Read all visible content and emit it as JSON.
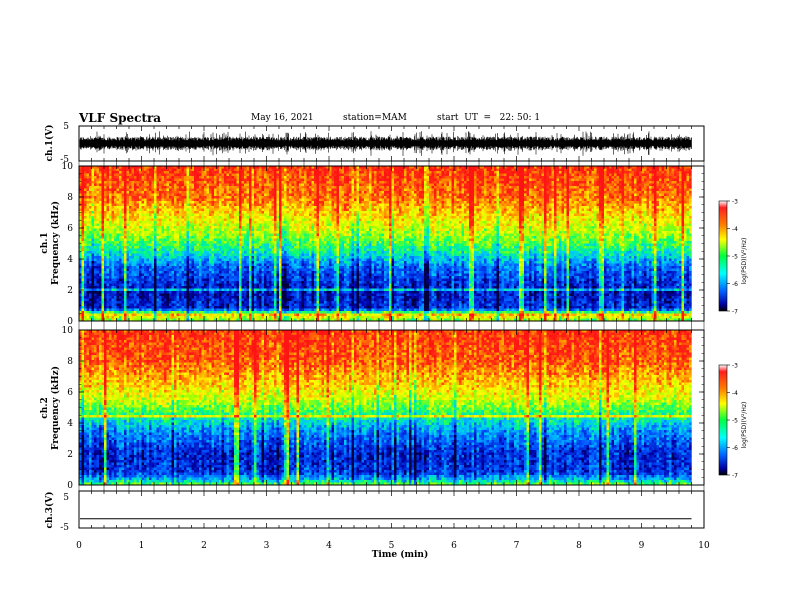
{
  "header": {
    "title": "VLF Spectra",
    "date": "May 16, 2021",
    "station": "station=MAM",
    "start": "start  UT  =   22: 50: 1"
  },
  "chart_data": [
    {
      "type": "line",
      "panel": "ch1-waveform",
      "ylabel": "ch.1(V)",
      "ylim": [
        -5,
        5
      ],
      "yticks": [
        5,
        -5
      ],
      "xlim": [
        0,
        10
      ],
      "description_of_signal": "dense broadband noise spanning about -4 to 4 V, data ends near 9.8 min"
    },
    {
      "type": "heatmap",
      "panel": "ch1-spectrogram",
      "ylabel_top": "ch.1",
      "ylabel": "Frequency (kHz)",
      "ylim": [
        0,
        10
      ],
      "yticks": [
        0,
        2,
        4,
        6,
        8,
        10
      ],
      "xlim": [
        0,
        10
      ],
      "data_end_min": 9.8,
      "colorbar": {
        "label": "log(PSD)(V²/Hz)",
        "range": [
          -7,
          -3
        ],
        "ticks": [
          "-3",
          "-4",
          "-5",
          "-6",
          "-7"
        ]
      },
      "level_profile": [
        {
          "f": 0.0,
          "logpsd": -4.8
        },
        {
          "f": 0.4,
          "logpsd": -4.0
        },
        {
          "f": 0.8,
          "logpsd": -6.4
        },
        {
          "f": 2.0,
          "logpsd": -6.5
        },
        {
          "f": 3.5,
          "logpsd": -6.0
        },
        {
          "f": 4.5,
          "logpsd": -5.2
        },
        {
          "f": 5.5,
          "logpsd": -4.6
        },
        {
          "f": 6.5,
          "logpsd": -4.2
        },
        {
          "f": 8.0,
          "logpsd": -3.6
        },
        {
          "f": 10.0,
          "logpsd": -3.3
        }
      ]
    },
    {
      "type": "heatmap",
      "panel": "ch2-spectrogram",
      "ylabel_top": "ch.2",
      "ylabel": "Frequency (kHz)",
      "ylim": [
        0,
        10
      ],
      "yticks": [
        0,
        2,
        4,
        6,
        8,
        10
      ],
      "xlim": [
        0,
        10
      ],
      "data_end_min": 9.8,
      "colorbar": {
        "label": "log(PSD)(V²/Hz)",
        "range": [
          -7,
          -3
        ],
        "ticks": [
          "-3",
          "-4",
          "-5",
          "-6",
          "-7"
        ]
      },
      "level_profile": [
        {
          "f": 0.0,
          "logpsd": -4.6
        },
        {
          "f": 0.3,
          "logpsd": -5.5
        },
        {
          "f": 0.8,
          "logpsd": -6.3
        },
        {
          "f": 2.0,
          "logpsd": -6.4
        },
        {
          "f": 3.5,
          "logpsd": -5.8
        },
        {
          "f": 4.5,
          "logpsd": -5.1
        },
        {
          "f": 5.5,
          "logpsd": -4.4
        },
        {
          "f": 6.5,
          "logpsd": -4.0
        },
        {
          "f": 8.0,
          "logpsd": -3.5
        },
        {
          "f": 10.0,
          "logpsd": -3.3
        }
      ]
    },
    {
      "type": "line",
      "panel": "ch3-waveform",
      "ylabel": "ch.3(V)",
      "ylim": [
        -5,
        5
      ],
      "yticks": [
        5,
        -5
      ],
      "xlim": [
        0,
        10
      ],
      "xlabel": "Time (min)",
      "xticks": [
        0,
        1,
        2,
        3,
        4,
        5,
        6,
        7,
        8,
        9,
        10
      ],
      "series": [
        {
          "x": [
            0,
            9.8
          ],
          "y": [
            -2.5,
            -2.5
          ]
        }
      ]
    }
  ]
}
